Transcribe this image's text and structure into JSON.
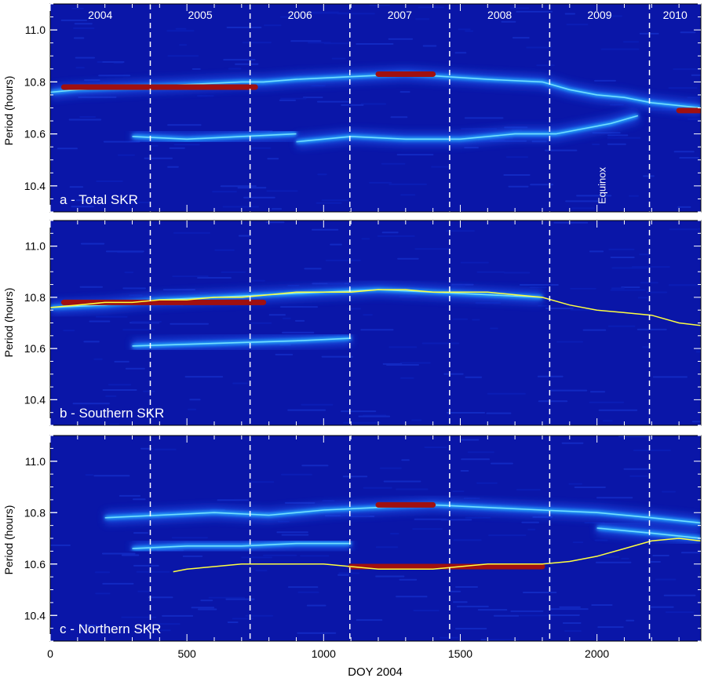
{
  "figure": {
    "xlabel": "DOY 2004",
    "ylabel": "Period (hours)",
    "x_ticks": [
      "0",
      "500",
      "1000",
      "1500",
      "2000"
    ],
    "y_ticks": [
      "10.4",
      "10.6",
      "10.8",
      "11.0"
    ],
    "year_labels": [
      "2004",
      "2005",
      "2006",
      "2007",
      "2008",
      "2009",
      "2010"
    ],
    "equinox_label": "Equinox",
    "colors": {
      "background": "#0a16a8",
      "ridge": "#22aaff",
      "peak": "#a01010",
      "track": "#ffff40",
      "text": "#ffffff",
      "divider": "#ffffff"
    }
  },
  "chart_data": [
    {
      "type": "heatmap",
      "title": "a - Total SKR",
      "xlim": [
        0,
        2380
      ],
      "ylim": [
        10.3,
        11.1
      ],
      "year_boundaries_doy": [
        366,
        731,
        1096,
        1461,
        1827,
        2192
      ],
      "equinox_doy": 2048,
      "grid": false,
      "ridges": [
        {
          "x": [
            0,
            100,
            300,
            500,
            700,
            780,
            900,
            1100,
            1300,
            1450,
            1600,
            1800,
            1900,
            2000,
            2100,
            2200,
            2380
          ],
          "y": [
            10.76,
            10.77,
            10.78,
            10.79,
            10.8,
            10.8,
            10.81,
            10.82,
            10.83,
            10.82,
            10.81,
            10.8,
            10.77,
            10.75,
            10.74,
            10.72,
            10.7
          ]
        },
        {
          "x": [
            900,
            1100,
            1300,
            1500,
            1700,
            1850,
            1950,
            2050,
            2150
          ],
          "y": [
            10.57,
            10.59,
            10.58,
            10.58,
            10.6,
            10.6,
            10.62,
            10.64,
            10.67
          ]
        },
        {
          "x": [
            300,
            500,
            700,
            900
          ],
          "y": [
            10.59,
            10.58,
            10.59,
            10.6
          ]
        }
      ],
      "peaks": [
        {
          "x_start": 50,
          "x_end": 750,
          "y": 10.78
        },
        {
          "x_start": 1200,
          "x_end": 1400,
          "y": 10.83
        },
        {
          "x_start": 2300,
          "x_end": 2380,
          "y": 10.69
        }
      ]
    },
    {
      "type": "heatmap",
      "title": "b - Southern SKR",
      "xlim": [
        0,
        2380
      ],
      "ylim": [
        10.3,
        11.1
      ],
      "year_boundaries_doy": [
        366,
        731,
        1096,
        1461,
        1827,
        2192
      ],
      "equinox_doy": 2048,
      "grid": false,
      "ridges": [
        {
          "x": [
            0,
            200,
            400,
            600,
            800,
            1000,
            1200,
            1400,
            1600,
            1800
          ],
          "y": [
            10.76,
            10.77,
            10.79,
            10.8,
            10.81,
            10.82,
            10.83,
            10.82,
            10.81,
            10.8
          ]
        },
        {
          "x": [
            300,
            600,
            900,
            1100
          ],
          "y": [
            10.61,
            10.62,
            10.63,
            10.64
          ]
        }
      ],
      "peaks": [
        {
          "x_start": 50,
          "x_end": 780,
          "y": 10.78
        }
      ],
      "track": {
        "x": [
          0,
          100,
          200,
          300,
          400,
          500,
          600,
          700,
          800,
          900,
          1000,
          1100,
          1200,
          1300,
          1400,
          1500,
          1600,
          1700,
          1800,
          1900,
          2000,
          2100,
          2200,
          2300,
          2380
        ],
        "y": [
          10.76,
          10.77,
          10.78,
          10.78,
          10.79,
          10.79,
          10.8,
          10.8,
          10.81,
          10.82,
          10.82,
          10.82,
          10.83,
          10.83,
          10.82,
          10.82,
          10.82,
          10.81,
          10.8,
          10.77,
          10.75,
          10.74,
          10.73,
          10.7,
          10.69
        ]
      }
    },
    {
      "type": "heatmap",
      "title": "c - Northern SKR",
      "xlim": [
        0,
        2380
      ],
      "ylim": [
        10.3,
        11.1
      ],
      "year_boundaries_doy": [
        366,
        731,
        1096,
        1461,
        1827,
        2192
      ],
      "equinox_doy": 2048,
      "grid": false,
      "ridges": [
        {
          "x": [
            200,
            400,
            600,
            800,
            1000,
            1200,
            1400,
            1600,
            1800,
            2000,
            2200,
            2380
          ],
          "y": [
            10.78,
            10.79,
            10.8,
            10.79,
            10.81,
            10.82,
            10.83,
            10.82,
            10.81,
            10.8,
            10.78,
            10.76
          ]
        },
        {
          "x": [
            2000,
            2200,
            2380
          ],
          "y": [
            10.74,
            10.72,
            10.7
          ]
        },
        {
          "x": [
            300,
            500,
            700,
            900,
            1100
          ],
          "y": [
            10.66,
            10.67,
            10.67,
            10.68,
            10.68
          ]
        }
      ],
      "peaks": [
        {
          "x_start": 1200,
          "x_end": 1400,
          "y": 10.83
        },
        {
          "x_start": 1100,
          "x_end": 1800,
          "y": 10.59
        }
      ],
      "track": {
        "x": [
          450,
          500,
          600,
          700,
          800,
          900,
          1000,
          1100,
          1200,
          1300,
          1400,
          1500,
          1600,
          1700,
          1800,
          1900,
          2000,
          2100,
          2200,
          2300,
          2380
        ],
        "y": [
          10.57,
          10.58,
          10.59,
          10.6,
          10.6,
          10.6,
          10.6,
          10.59,
          10.58,
          10.58,
          10.58,
          10.59,
          10.6,
          10.6,
          10.6,
          10.61,
          10.63,
          10.66,
          10.69,
          10.7,
          10.69
        ]
      }
    }
  ]
}
